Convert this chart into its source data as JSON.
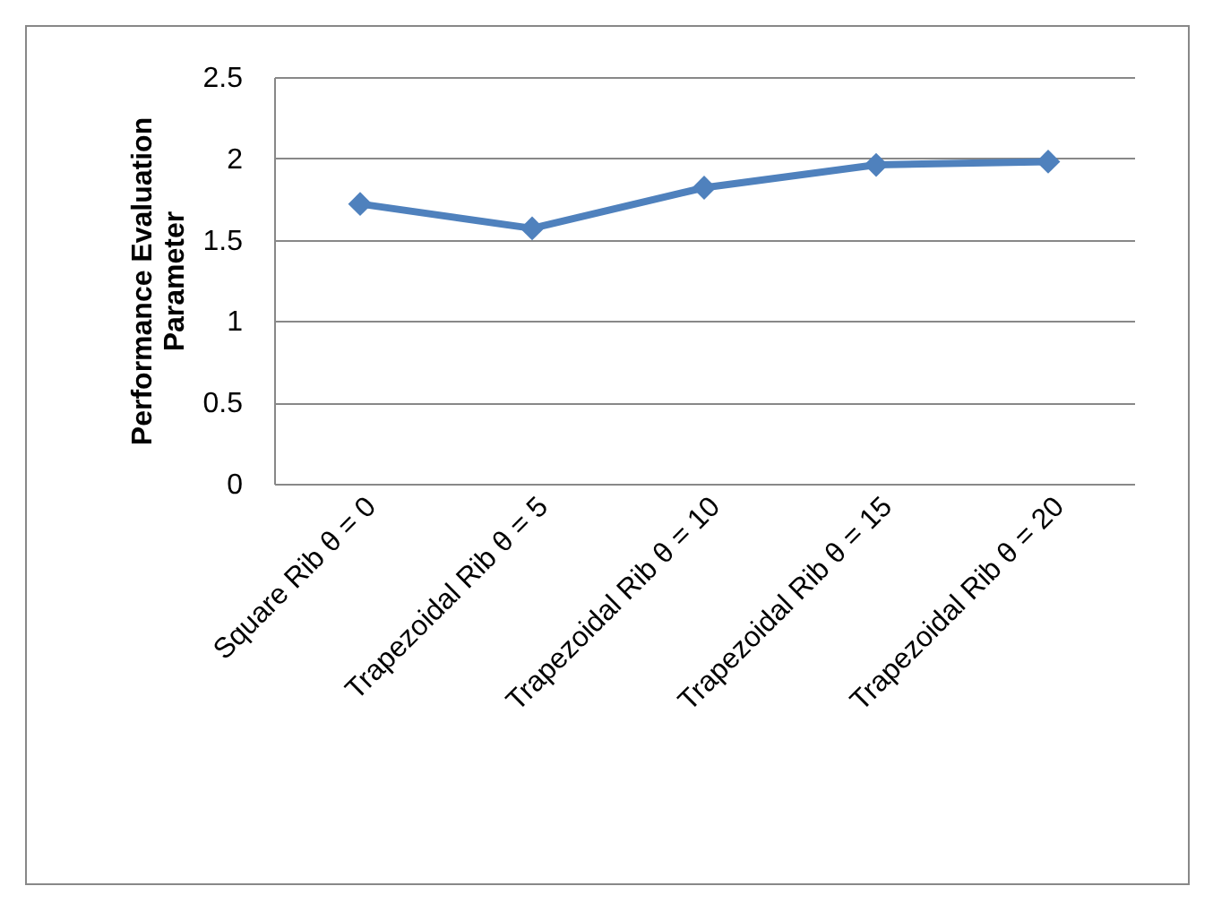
{
  "chart_data": {
    "type": "line",
    "ylabel": "Performance Evaluation\nParameter",
    "categories": [
      "Square Rib θ = 0",
      "Trapezoidal Rib θ = 5",
      "Trapezoidal Rib θ = 10",
      "Trapezoidal Rib θ = 15",
      "Trapezoidal Rib θ = 20"
    ],
    "series": [
      {
        "color": "#4f81bd",
        "values": [
          1.72,
          1.57,
          1.82,
          1.96,
          1.98
        ]
      }
    ],
    "ylim": [
      0,
      2.5
    ],
    "yticks": [
      0,
      0.5,
      1,
      1.5,
      2,
      2.5
    ],
    "grid": "y",
    "marker": "diamond",
    "line_style": "solid",
    "legend": false
  }
}
